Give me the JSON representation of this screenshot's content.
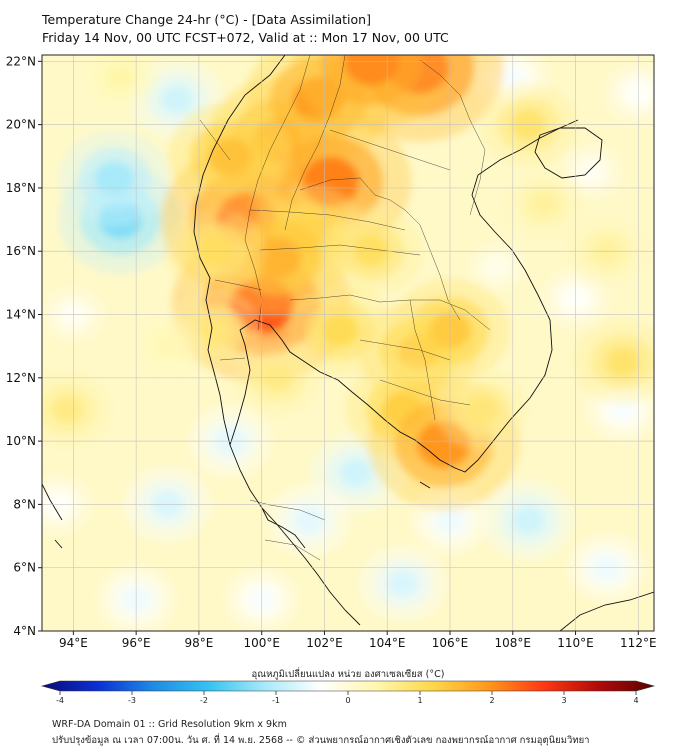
{
  "header": {
    "title_line1": "Temperature Change 24-hr (°C) - [Data Assimilation]",
    "title_line2": "Friday 14 Nov, 00 UTC FCST+072, Valid at :: Mon 17 Nov, 00 UTC"
  },
  "map": {
    "lat_labels": [
      "22°N",
      "20°N",
      "18°N",
      "16°N",
      "14°N",
      "12°N",
      "10°N",
      "8°N",
      "6°N",
      "4°N"
    ],
    "lat_values": [
      22,
      20,
      18,
      16,
      14,
      12,
      10,
      8,
      6,
      4
    ],
    "lon_labels": [
      "94°E",
      "96°E",
      "98°E",
      "100°E",
      "102°E",
      "104°E",
      "106°E",
      "108°E",
      "110°E",
      "112°E"
    ],
    "lon_values": [
      94,
      96,
      98,
      100,
      102,
      104,
      106,
      108,
      110,
      112
    ],
    "lon_range": [
      93,
      112.5
    ],
    "lat_range": [
      4,
      22.2
    ]
  },
  "field_anomalies": [
    {
      "lon": 95.5,
      "lat": 17.0,
      "value": -1.6
    },
    {
      "lon": 95.3,
      "lat": 18.3,
      "value": -1.3
    },
    {
      "lon": 97.3,
      "lat": 20.8,
      "value": -0.9
    },
    {
      "lon": 94.0,
      "lat": 14.0,
      "value": -0.3
    },
    {
      "lon": 110.0,
      "lat": 14.5,
      "value": -0.4
    },
    {
      "lon": 108.5,
      "lat": 7.5,
      "value": -0.9
    },
    {
      "lon": 103.0,
      "lat": 9.0,
      "value": -0.9
    },
    {
      "lon": 99.0,
      "lat": 10.0,
      "value": -0.7
    },
    {
      "lon": 97.0,
      "lat": 8.0,
      "value": -0.8
    },
    {
      "lon": 96.0,
      "lat": 5.0,
      "value": -0.6
    },
    {
      "lon": 104.5,
      "lat": 5.5,
      "value": -0.8
    },
    {
      "lon": 101.5,
      "lat": 7.5,
      "value": -0.7
    },
    {
      "lon": 111.0,
      "lat": 6.0,
      "value": -0.6
    },
    {
      "lon": 111.5,
      "lat": 11.0,
      "value": -0.5
    },
    {
      "lon": 110.5,
      "lat": 18.5,
      "value": -0.3
    },
    {
      "lon": 108.0,
      "lat": 21.5,
      "value": -0.5
    },
    {
      "lon": 100.0,
      "lat": 5.0,
      "value": -0.5
    },
    {
      "lon": 112.0,
      "lat": 21.0,
      "value": -0.4
    },
    {
      "lon": 107.5,
      "lat": 15.5,
      "value": -0.2
    },
    {
      "lon": 106.0,
      "lat": 7.5,
      "value": -0.6
    },
    {
      "lon": 93.5,
      "lat": 8.0,
      "value": -0.4
    },
    {
      "lon": 100.5,
      "lat": 19.5,
      "value": 2.0
    },
    {
      "lon": 101.8,
      "lat": 20.8,
      "value": 2.1
    },
    {
      "lon": 99.5,
      "lat": 17.0,
      "value": 2.6
    },
    {
      "lon": 100.0,
      "lat": 14.3,
      "value": 2.8
    },
    {
      "lon": 102.2,
      "lat": 18.2,
      "value": 2.4
    },
    {
      "lon": 105.0,
      "lat": 21.8,
      "value": 2.6
    },
    {
      "lon": 103.5,
      "lat": 22.0,
      "value": 2.3
    },
    {
      "lon": 99.0,
      "lat": 19.0,
      "value": 1.6
    },
    {
      "lon": 101.5,
      "lat": 16.5,
      "value": 1.4
    },
    {
      "lon": 100.5,
      "lat": 15.8,
      "value": 1.8
    },
    {
      "lon": 103.5,
      "lat": 16.0,
      "value": 1.1
    },
    {
      "lon": 102.5,
      "lat": 13.5,
      "value": 1.2
    },
    {
      "lon": 105.0,
      "lat": 12.8,
      "value": 1.5
    },
    {
      "lon": 106.0,
      "lat": 13.5,
      "value": 1.5
    },
    {
      "lon": 104.5,
      "lat": 11.0,
      "value": 1.4
    },
    {
      "lon": 105.8,
      "lat": 9.9,
      "value": 2.2
    },
    {
      "lon": 98.5,
      "lat": 16.0,
      "value": 1.1
    },
    {
      "lon": 98.5,
      "lat": 13.5,
      "value": 0.9
    },
    {
      "lon": 108.5,
      "lat": 20.0,
      "value": 1.0
    },
    {
      "lon": 111.5,
      "lat": 12.5,
      "value": 1.0
    },
    {
      "lon": 107.0,
      "lat": 11.0,
      "value": 0.9
    },
    {
      "lon": 109.0,
      "lat": 17.5,
      "value": 0.6
    },
    {
      "lon": 93.8,
      "lat": 11.0,
      "value": 0.8
    },
    {
      "lon": 97.0,
      "lat": 13.0,
      "value": 0.4
    },
    {
      "lon": 95.5,
      "lat": 21.5,
      "value": 0.5
    },
    {
      "lon": 100.5,
      "lat": 12.0,
      "value": 0.8
    },
    {
      "lon": 111.0,
      "lat": 16.0,
      "value": 0.6
    }
  ],
  "colorbar": {
    "label": "อุณหภูมิเปลี่ยนแปลง หน่วย องศาเซลเซียส (°C)",
    "min": -4,
    "max": 4,
    "ticks": [
      "-4",
      "-3",
      "-2",
      "-1",
      "0",
      "1",
      "2",
      "3",
      "4"
    ],
    "tick_values": [
      -4,
      -3,
      -2,
      -1,
      0,
      1,
      2,
      3,
      4
    ],
    "stops": [
      "#0a0a78",
      "#0b2fd2",
      "#1e8be6",
      "#35c3f0",
      "#a7e9fa",
      "#ffffff",
      "#fff7b0",
      "#ffd84a",
      "#ff9a1c",
      "#ff3a12",
      "#b00a0a",
      "#5a0000"
    ]
  },
  "footer": {
    "line1": "WRF-DA Domain 01 :: Grid Resolution 9km x 9km",
    "line2": "ปรับปรุงข้อมูล ณ เวลา 07:00น. วัน ศ. ที่ 14 พ.ย. 2568 -- © ส่วนพยากรณ์อากาศเชิงตัวเลข กองพยากรณ์อากาศ กรมอุตุนิยมวิทยา"
  }
}
